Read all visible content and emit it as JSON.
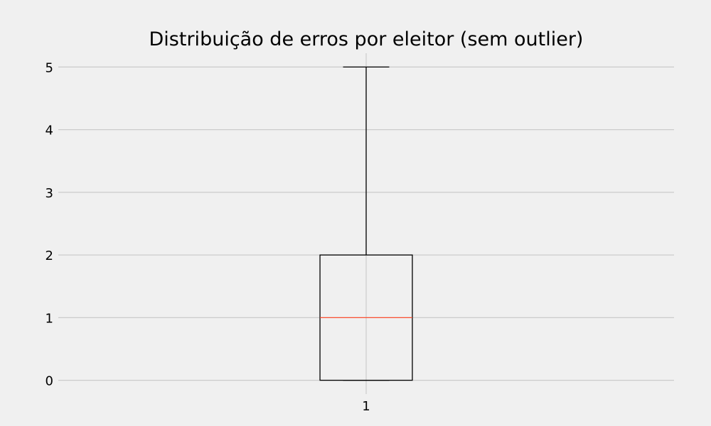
{
  "chart_data": {
    "type": "boxplot",
    "title": "Distribuição de erros por eleitor (sem outlier)",
    "xlabel": "",
    "ylabel": "",
    "categories": [
      "1"
    ],
    "boxes": [
      {
        "category": "1",
        "whisker_low": 0,
        "q1": 0,
        "median": 1,
        "q3": 2,
        "whisker_high": 5
      }
    ],
    "yticks": [
      0,
      1,
      2,
      3,
      4,
      5
    ],
    "ylim": [
      -0.22,
      5.22
    ],
    "xlim": [
      0.5,
      1.5
    ],
    "grid": true,
    "colors": {
      "background": "#f0f0f0",
      "grid": "#cbcbcb",
      "box": "#000000",
      "median": "#fc4f30"
    }
  }
}
